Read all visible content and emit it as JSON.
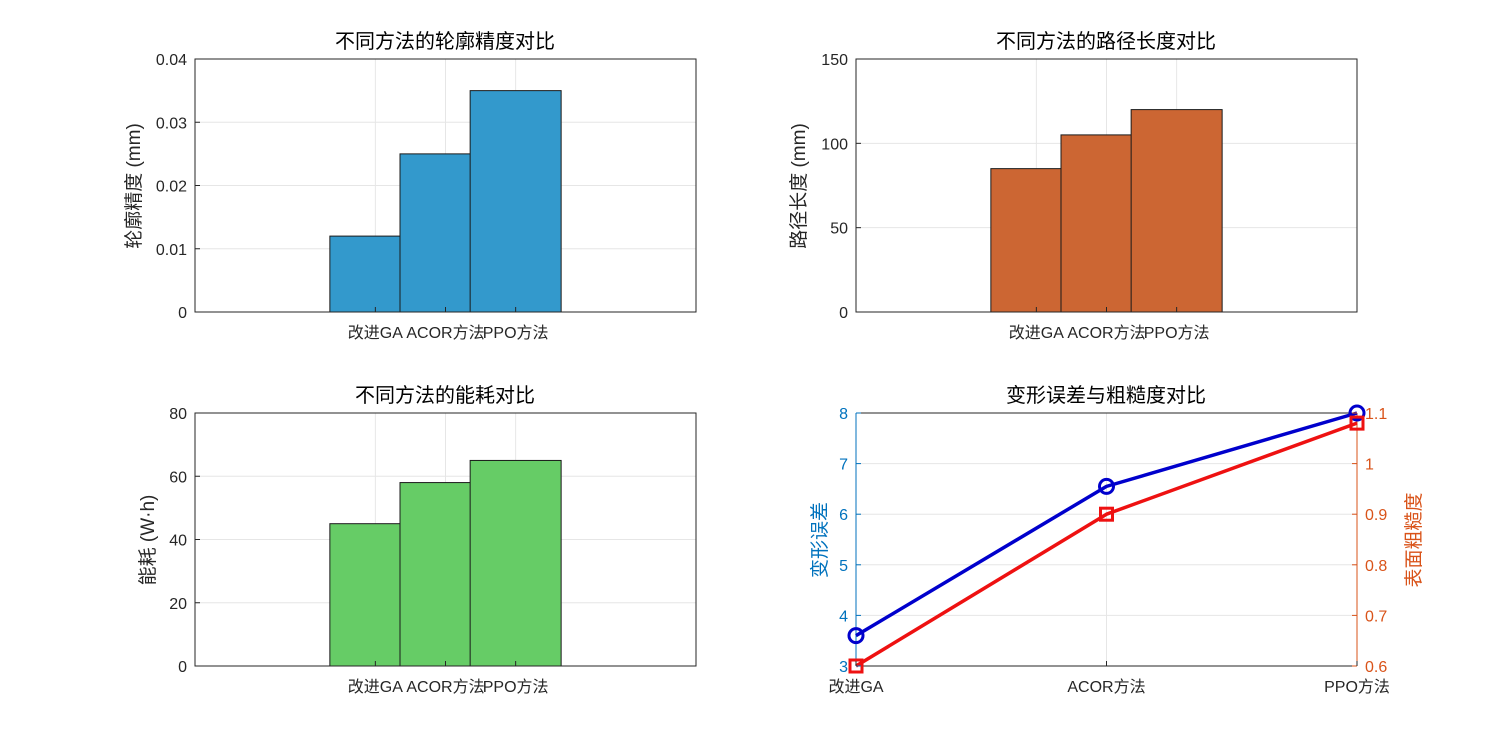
{
  "chart_data": [
    {
      "type": "bar",
      "title": "不同方法的轮廓精度对比",
      "ylabel": "轮廓精度 (mm)",
      "categories": [
        "改进GA",
        "ACOR方法",
        "PPO方法"
      ],
      "values": [
        0.012,
        0.025,
        0.035
      ],
      "ylim": [
        0,
        0.04
      ],
      "yticks": [
        0,
        0.01,
        0.02,
        0.03,
        0.04
      ],
      "ytick_labels": [
        "0",
        "0.01",
        "0.02",
        "0.03",
        "0.04"
      ],
      "color": "#3399CC",
      "grid": true
    },
    {
      "type": "bar",
      "title": "不同方法的路径长度对比",
      "ylabel": "路径长度 (mm)",
      "categories": [
        "改进GA",
        "ACOR方法",
        "PPO方法"
      ],
      "values": [
        85,
        105,
        120
      ],
      "ylim": [
        0,
        150
      ],
      "yticks": [
        0,
        50,
        100,
        150
      ],
      "ytick_labels": [
        "0",
        "50",
        "100",
        "150"
      ],
      "color": "#CC6633",
      "grid": true
    },
    {
      "type": "bar",
      "title": "不同方法的能耗对比",
      "ylabel": "能耗 (W·h)",
      "categories": [
        "改进GA",
        "ACOR方法",
        "PPO方法"
      ],
      "values": [
        45,
        58,
        65
      ],
      "ylim": [
        0,
        80
      ],
      "yticks": [
        0,
        20,
        40,
        60,
        80
      ],
      "ytick_labels": [
        "0",
        "20",
        "40",
        "60",
        "80"
      ],
      "color": "#66CC66",
      "grid": true
    },
    {
      "type": "line",
      "title": "变形误差与粗糙度对比",
      "categories": [
        "改进GA",
        "ACOR方法",
        "PPO方法"
      ],
      "left_axis": {
        "label": "变形误差",
        "ylim": [
          3,
          8
        ],
        "yticks": [
          3,
          4,
          5,
          6,
          7,
          8
        ],
        "ytick_labels": [
          "3",
          "4",
          "5",
          "6",
          "7",
          "8"
        ],
        "color": "#0072BD"
      },
      "right_axis": {
        "label": "表面粗糙度",
        "ylim": [
          0.6,
          1.1
        ],
        "yticks": [
          0.6,
          0.7,
          0.8,
          0.9,
          1.0,
          1.1
        ],
        "ytick_labels": [
          "0.6",
          "0.7",
          "0.8",
          "0.9",
          "1",
          "1.1"
        ],
        "color": "#D95319"
      },
      "series": [
        {
          "name": "变形误差",
          "axis": "left",
          "values": [
            3.6,
            6.55,
            8.0
          ],
          "color": "#0000CC",
          "marker": "circle"
        },
        {
          "name": "表面粗糙度",
          "axis": "right",
          "values": [
            0.6,
            0.9,
            1.08
          ],
          "color": "#EE1111",
          "marker": "square"
        }
      ],
      "grid": true
    }
  ]
}
